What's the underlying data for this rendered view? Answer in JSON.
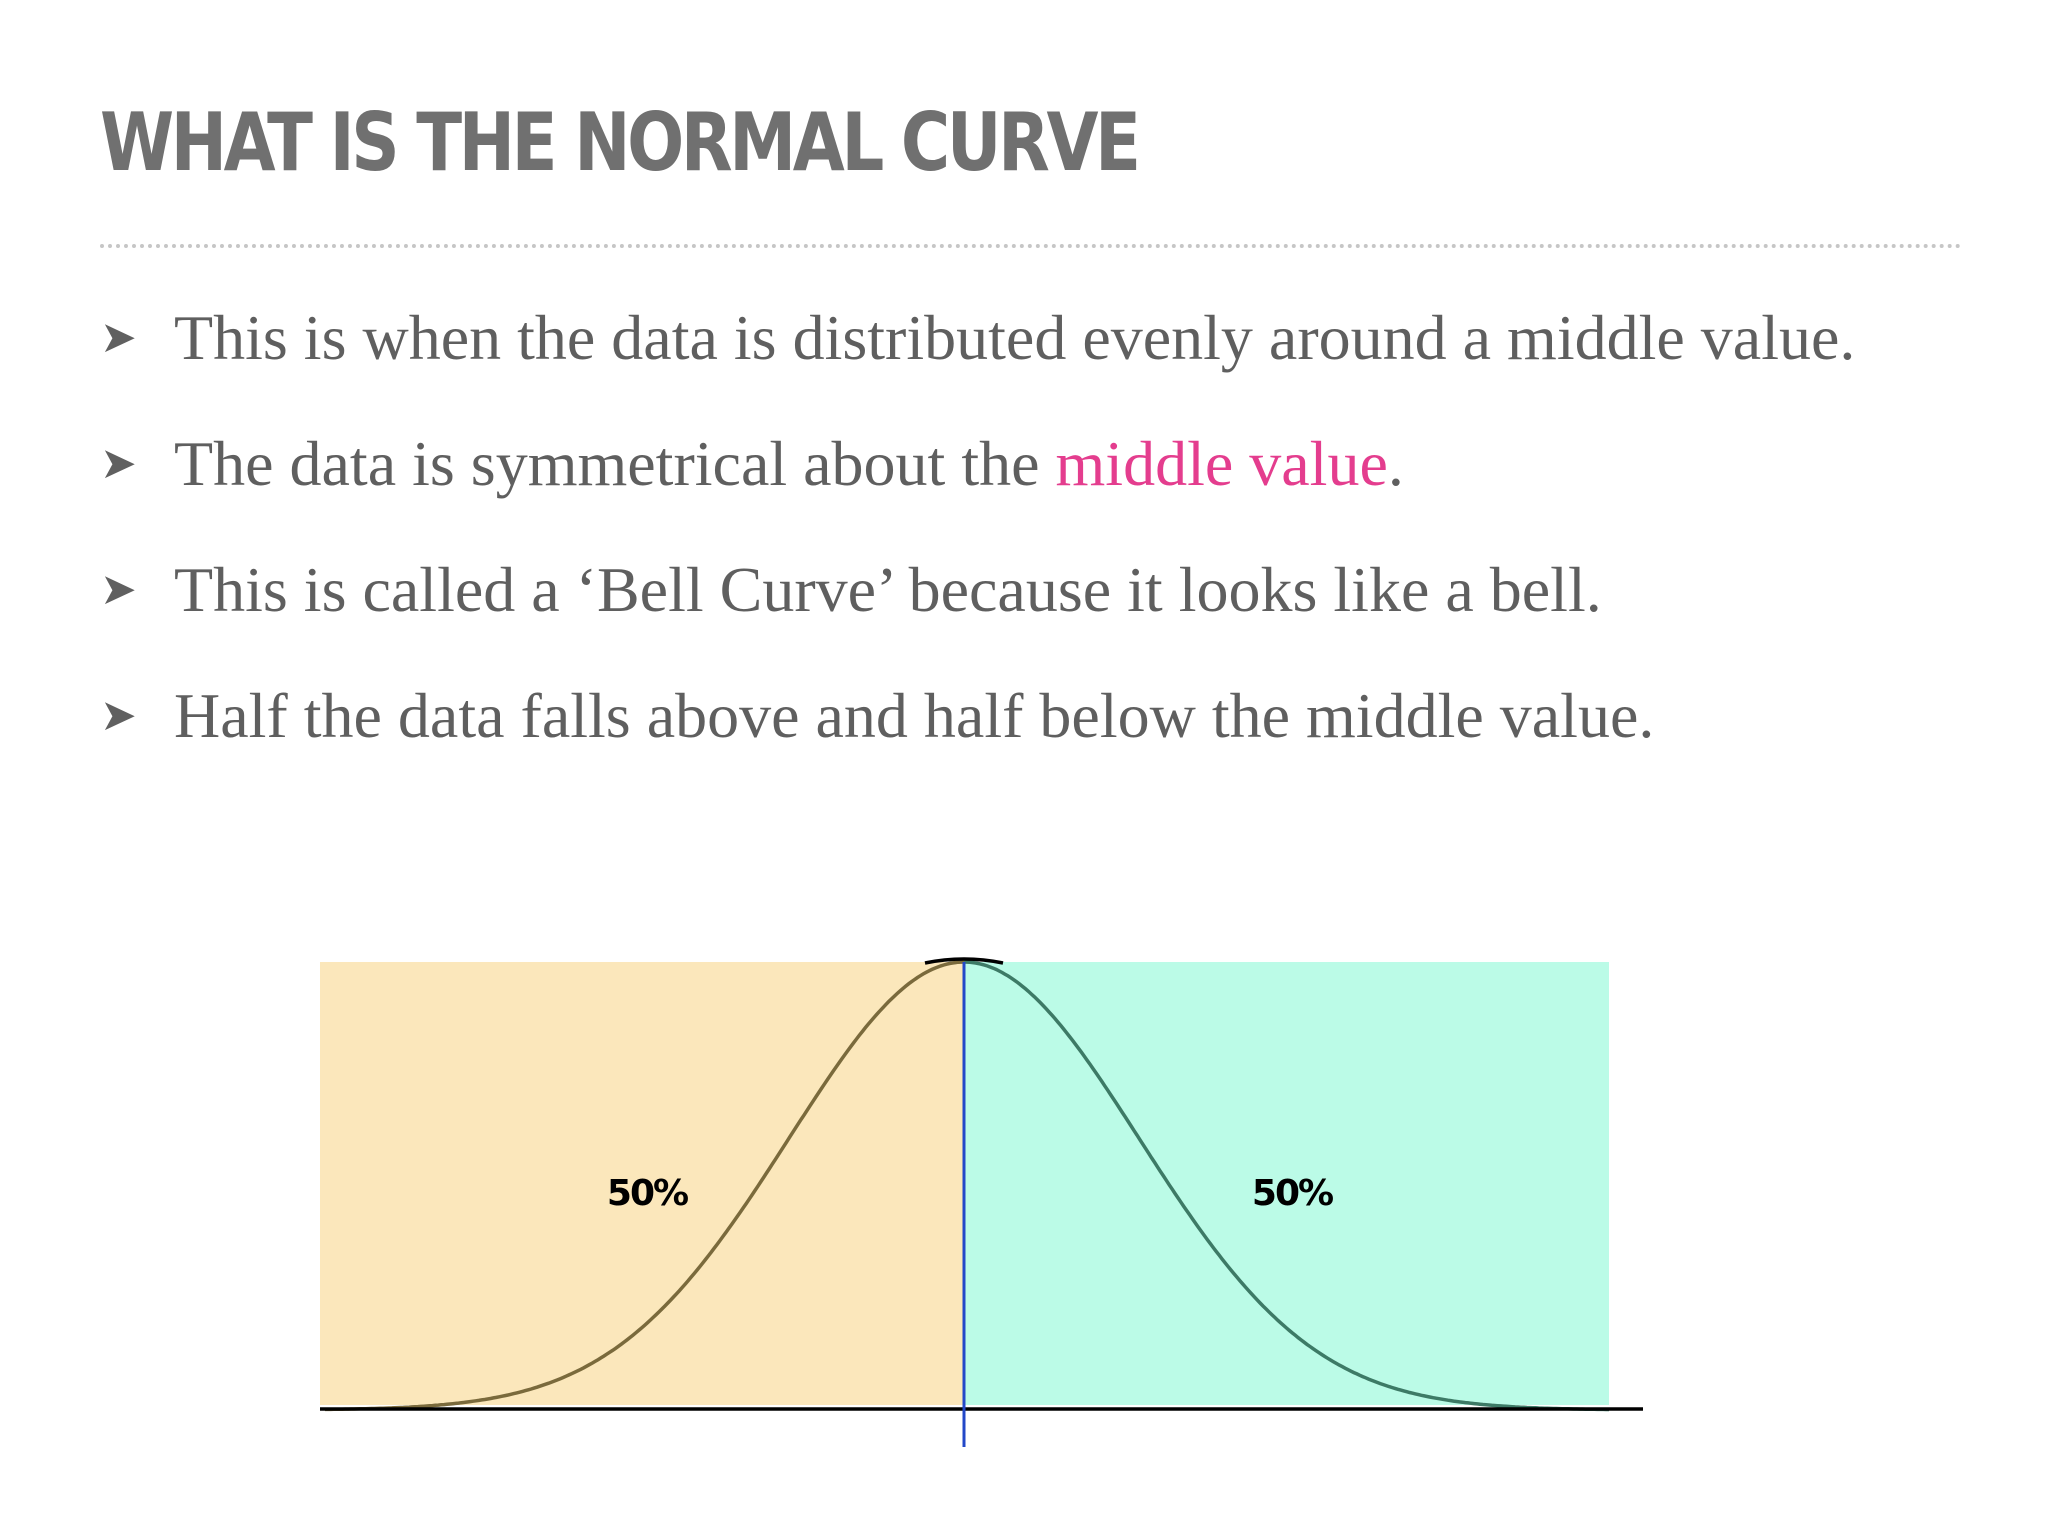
{
  "slide": {
    "title": "WHAT IS THE NORMAL CURVE",
    "bullets": [
      {
        "text": "This is when the data is distributed evenly around a middle value."
      },
      {
        "before": "The data is symmetrical about the ",
        "highlight": "middle value",
        "after": "."
      },
      {
        "text": "This is called a ‘Bell Curve’ because it looks like a bell."
      },
      {
        "text": "Half the data falls above and half below the middle value."
      }
    ],
    "bullet_glyph": "➤",
    "highlight_color": "#e43d8e"
  },
  "chart_data": {
    "type": "area",
    "regions": [
      {
        "side": "left",
        "label": "50%",
        "fill": "#fbe7bb",
        "curve_color": "#7a6a3c"
      },
      {
        "side": "right",
        "label": "50%",
        "fill": "#bbfbe7",
        "curve_color": "#3d7a66"
      }
    ],
    "median_line_color": "#2348c8",
    "axis_color": "#000000"
  }
}
